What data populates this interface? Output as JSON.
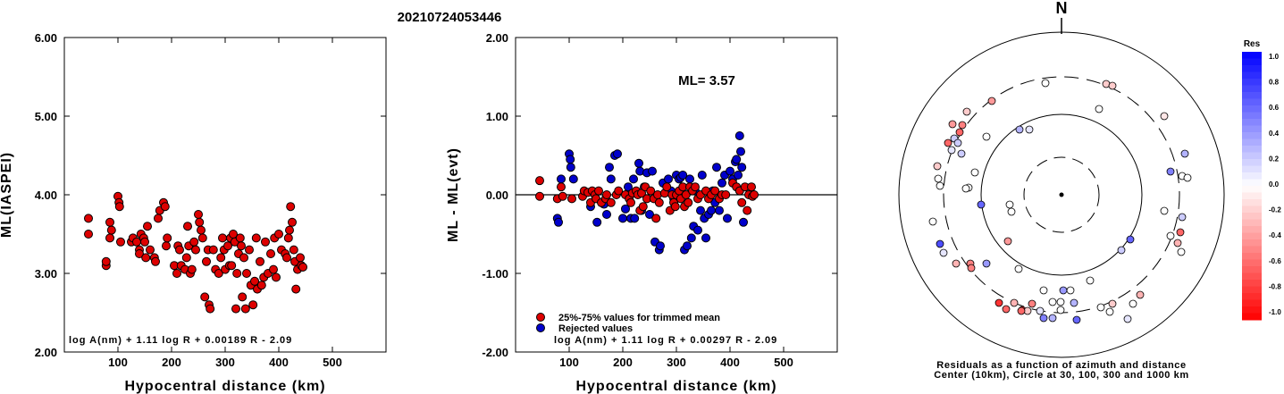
{
  "event_id": "20210724053446",
  "panels": {
    "left": {
      "ylabel": "ML(IASPEI)",
      "xlabel": "Hypocentral distance (km)",
      "formula": "log A(nm) + 1.11 log R + 0.00189 R - 2.09"
    },
    "middle": {
      "ylabel": "ML - ML(evt)",
      "xlabel": "Hypocentral distance (km)",
      "ml_annotation": "ML= 3.57",
      "legend_trimmed": "25%-75% values for trimmed mean",
      "legend_rejected": "Rejected values",
      "formula": "log A(nm) + 1.11 log R + 0.00297 R - 2.09"
    },
    "polar": {
      "north_label": "N",
      "caption_line1": "Residuals as a function of azimuth and distance",
      "caption_line2": "Center (10km), Circle at 30, 100, 300 and 1000 km"
    },
    "colorbar": {
      "title": "Res",
      "labels": [
        "1.0",
        "0.8",
        "0.6",
        "0.4",
        "0.2",
        "0.0",
        "-0.2",
        "-0.4",
        "-0.6",
        "-0.8",
        "-1.0"
      ]
    }
  },
  "colors": {
    "trimmed": "#dd0000",
    "rejected": "#0000cc",
    "positive_residual": "#0000ff",
    "negative_residual": "#ff0000"
  },
  "chart_data": [
    {
      "type": "scatter",
      "panel": "left",
      "xlabel": "Hypocentral distance (km)",
      "ylabel": "ML(IASPEI)",
      "xlim": [
        0,
        600
      ],
      "ylim": [
        2.0,
        6.0
      ],
      "xticks": [
        "100",
        "200",
        "300",
        "400",
        "500"
      ],
      "yticks": [
        "2.00",
        "3.00",
        "4.00",
        "5.00",
        "6.00"
      ],
      "points": [
        [
          45,
          3.7
        ],
        [
          45,
          3.5
        ],
        [
          78,
          3.1
        ],
        [
          78,
          3.15
        ],
        [
          85,
          3.65
        ],
        [
          85,
          3.45
        ],
        [
          88,
          3.55
        ],
        [
          100,
          3.98
        ],
        [
          102,
          3.9
        ],
        [
          103,
          3.85
        ],
        [
          105,
          3.4
        ],
        [
          125,
          3.4
        ],
        [
          128,
          3.45
        ],
        [
          135,
          3.4
        ],
        [
          140,
          3.3
        ],
        [
          140,
          3.25
        ],
        [
          143,
          3.5
        ],
        [
          148,
          3.45
        ],
        [
          150,
          3.4
        ],
        [
          152,
          3.2
        ],
        [
          155,
          3.6
        ],
        [
          160,
          3.3
        ],
        [
          168,
          3.2
        ],
        [
          170,
          3.15
        ],
        [
          175,
          3.7
        ],
        [
          178,
          3.8
        ],
        [
          185,
          3.9
        ],
        [
          188,
          3.85
        ],
        [
          190,
          3.35
        ],
        [
          192,
          3.45
        ],
        [
          205,
          3.1
        ],
        [
          210,
          3.0
        ],
        [
          212,
          3.35
        ],
        [
          215,
          3.3
        ],
        [
          218,
          3.1
        ],
        [
          225,
          3.05
        ],
        [
          228,
          3.2
        ],
        [
          230,
          3.6
        ],
        [
          232,
          3.35
        ],
        [
          235,
          3.0
        ],
        [
          238,
          3.05
        ],
        [
          242,
          3.4
        ],
        [
          245,
          3.3
        ],
        [
          250,
          3.75
        ],
        [
          252,
          3.65
        ],
        [
          255,
          3.55
        ],
        [
          258,
          3.45
        ],
        [
          262,
          2.7
        ],
        [
          265,
          3.15
        ],
        [
          268,
          3.3
        ],
        [
          270,
          2.6
        ],
        [
          272,
          2.55
        ],
        [
          278,
          3.3
        ],
        [
          282,
          3.05
        ],
        [
          288,
          3.0
        ],
        [
          292,
          3.2
        ],
        [
          295,
          3.45
        ],
        [
          298,
          3.3
        ],
        [
          300,
          3.05
        ],
        [
          305,
          3.35
        ],
        [
          308,
          3.1
        ],
        [
          310,
          3.45
        ],
        [
          312,
          3.1
        ],
        [
          315,
          3.5
        ],
        [
          318,
          3.4
        ],
        [
          320,
          2.55
        ],
        [
          322,
          3.0
        ],
        [
          325,
          3.25
        ],
        [
          328,
          3.45
        ],
        [
          330,
          3.35
        ],
        [
          332,
          2.7
        ],
        [
          335,
          3.2
        ],
        [
          338,
          2.55
        ],
        [
          340,
          3.0
        ],
        [
          345,
          3.3
        ],
        [
          348,
          2.85
        ],
        [
          352,
          2.6
        ],
        [
          355,
          2.9
        ],
        [
          358,
          3.45
        ],
        [
          360,
          2.8
        ],
        [
          365,
          3.15
        ],
        [
          368,
          2.85
        ],
        [
          372,
          2.95
        ],
        [
          375,
          3.4
        ],
        [
          380,
          3.0
        ],
        [
          385,
          3.25
        ],
        [
          390,
          3.05
        ],
        [
          392,
          3.45
        ],
        [
          395,
          2.95
        ],
        [
          400,
          3.5
        ],
        [
          405,
          3.3
        ],
        [
          412,
          3.25
        ],
        [
          415,
          3.2
        ],
        [
          418,
          3.45
        ],
        [
          420,
          3.55
        ],
        [
          422,
          3.85
        ],
        [
          425,
          3.65
        ],
        [
          428,
          3.3
        ],
        [
          430,
          3.15
        ],
        [
          432,
          2.8
        ],
        [
          435,
          3.05
        ],
        [
          440,
          3.2
        ],
        [
          442,
          3.1
        ],
        [
          445,
          3.08
        ]
      ]
    },
    {
      "type": "scatter",
      "panel": "middle",
      "xlabel": "Hypocentral distance (km)",
      "ylabel": "ML - ML(evt)",
      "xlim": [
        0,
        600
      ],
      "ylim": [
        -2.0,
        2.0
      ],
      "xticks": [
        "100",
        "200",
        "300",
        "400",
        "500"
      ],
      "yticks": [
        "-2.00",
        "-1.00",
        "0.00",
        "1.00",
        "2.00"
      ],
      "reference_line_y": 0.0,
      "series": [
        {
          "name": "25%-75% values for trimmed mean",
          "points": [
            [
              45,
              0.18
            ],
            [
              45,
              -0.02
            ],
            [
              78,
              -0.05
            ],
            [
              85,
              0.1
            ],
            [
              88,
              -0.02
            ],
            [
              105,
              -0.05
            ],
            [
              125,
              -0.02
            ],
            [
              128,
              0.05
            ],
            [
              135,
              0.03
            ],
            [
              140,
              -0.1
            ],
            [
              143,
              0.05
            ],
            [
              148,
              0.0
            ],
            [
              150,
              -0.05
            ],
            [
              155,
              0.05
            ],
            [
              160,
              -0.1
            ],
            [
              168,
              -0.05
            ],
            [
              170,
              0.0
            ],
            [
              178,
              -0.1
            ],
            [
              188,
              0.0
            ],
            [
              192,
              0.05
            ],
            [
              205,
              0.0
            ],
            [
              212,
              -0.05
            ],
            [
              215,
              -0.1
            ],
            [
              218,
              0.02
            ],
            [
              225,
              0.05
            ],
            [
              228,
              0.0
            ],
            [
              232,
              -0.2
            ],
            [
              235,
              0.02
            ],
            [
              238,
              -0.15
            ],
            [
              242,
              0.1
            ],
            [
              245,
              -0.05
            ],
            [
              252,
              0.05
            ],
            [
              258,
              -0.05
            ],
            [
              262,
              -0.3
            ],
            [
              265,
              0.0
            ],
            [
              268,
              -0.1
            ],
            [
              278,
              0.02
            ],
            [
              282,
              0.1
            ],
            [
              288,
              -0.2
            ],
            [
              292,
              0.0
            ],
            [
              295,
              -0.1
            ],
            [
              298,
              -0.15
            ],
            [
              300,
              0.0
            ],
            [
              305,
              0.05
            ],
            [
              308,
              -0.05
            ],
            [
              312,
              0.1
            ],
            [
              315,
              -0.15
            ],
            [
              318,
              0.0
            ],
            [
              322,
              -0.1
            ],
            [
              325,
              0.1
            ],
            [
              330,
              0.05
            ],
            [
              335,
              0.1
            ],
            [
              340,
              -0.05
            ],
            [
              345,
              0.0
            ],
            [
              355,
              0.05
            ],
            [
              360,
              -0.05
            ],
            [
              365,
              0.0
            ],
            [
              372,
              0.05
            ],
            [
              380,
              -0.05
            ],
            [
              385,
              0.0
            ],
            [
              392,
              0.0
            ],
            [
              405,
              0.15
            ],
            [
              412,
              0.1
            ],
            [
              418,
              0.05
            ],
            [
              422,
              -0.1
            ],
            [
              428,
              0.1
            ],
            [
              432,
              -0.2
            ],
            [
              435,
              0.0
            ],
            [
              440,
              0.1
            ],
            [
              442,
              -0.02
            ],
            [
              445,
              0.0
            ]
          ]
        },
        {
          "name": "Rejected values",
          "points": [
            [
              78,
              -0.3
            ],
            [
              80,
              -0.35
            ],
            [
              85,
              0.2
            ],
            [
              100,
              0.52
            ],
            [
              102,
              0.45
            ],
            [
              103,
              0.35
            ],
            [
              108,
              0.2
            ],
            [
              140,
              -0.15
            ],
            [
              152,
              -0.35
            ],
            [
              165,
              -0.12
            ],
            [
              170,
              -0.25
            ],
            [
              175,
              0.35
            ],
            [
              178,
              0.2
            ],
            [
              185,
              0.5
            ],
            [
              190,
              0.52
            ],
            [
              200,
              -0.3
            ],
            [
              205,
              -0.18
            ],
            [
              210,
              0.1
            ],
            [
              215,
              -0.3
            ],
            [
              220,
              0.2
            ],
            [
              222,
              -0.3
            ],
            [
              230,
              0.4
            ],
            [
              232,
              0.3
            ],
            [
              235,
              -0.2
            ],
            [
              240,
              0.1
            ],
            [
              245,
              0.28
            ],
            [
              250,
              -0.25
            ],
            [
              255,
              0.3
            ],
            [
              260,
              -0.6
            ],
            [
              268,
              -0.7
            ],
            [
              270,
              -0.65
            ],
            [
              275,
              0.15
            ],
            [
              285,
              0.2
            ],
            [
              290,
              0.05
            ],
            [
              295,
              -0.05
            ],
            [
              300,
              0.25
            ],
            [
              305,
              0.2
            ],
            [
              308,
              0.22
            ],
            [
              312,
              0.25
            ],
            [
              315,
              -0.7
            ],
            [
              320,
              -0.65
            ],
            [
              325,
              0.2
            ],
            [
              328,
              -0.55
            ],
            [
              332,
              -0.4
            ],
            [
              335,
              0.05
            ],
            [
              340,
              -0.45
            ],
            [
              345,
              -0.2
            ],
            [
              348,
              0.25
            ],
            [
              352,
              -0.3
            ],
            [
              355,
              -0.55
            ],
            [
              360,
              -0.25
            ],
            [
              365,
              -0.2
            ],
            [
              368,
              0.05
            ],
            [
              372,
              -0.1
            ],
            [
              375,
              0.35
            ],
            [
              380,
              -0.2
            ],
            [
              385,
              0.15
            ],
            [
              390,
              0.25
            ],
            [
              395,
              -0.3
            ],
            [
              400,
              0.3
            ],
            [
              405,
              0.2
            ],
            [
              410,
              0.42
            ],
            [
              412,
              0.45
            ],
            [
              415,
              0.25
            ],
            [
              418,
              0.75
            ],
            [
              420,
              0.55
            ],
            [
              422,
              0.35
            ],
            [
              425,
              -0.35
            ]
          ]
        }
      ]
    }
  ]
}
